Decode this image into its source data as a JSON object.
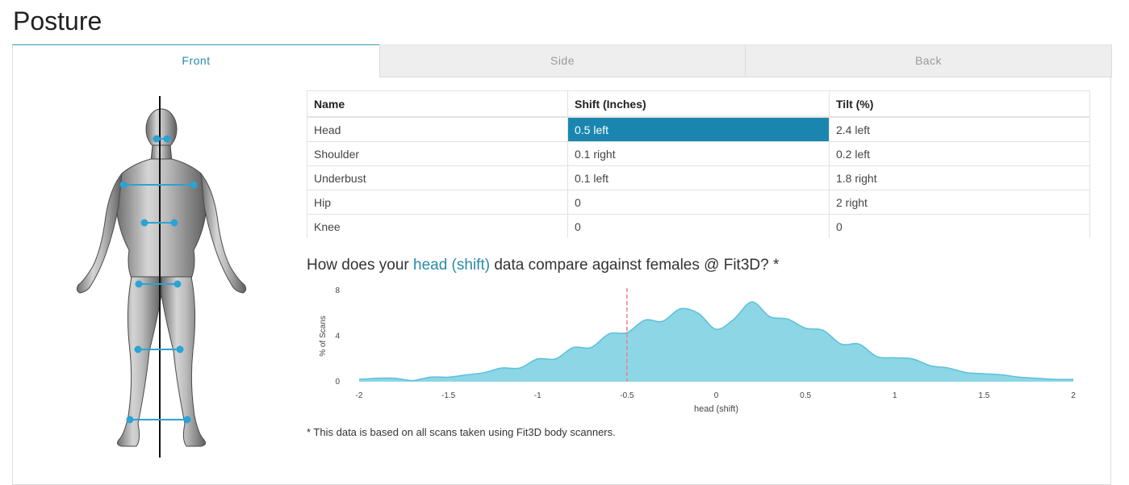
{
  "page": {
    "title": "Posture"
  },
  "tabs": [
    {
      "label": "Front",
      "active": true
    },
    {
      "label": "Side",
      "active": false
    },
    {
      "label": "Back",
      "active": false
    }
  ],
  "table": {
    "headers": [
      "Name",
      "Shift (Inches)",
      "Tilt (%)"
    ],
    "rows": [
      {
        "name": "Head",
        "shift": "0.5 left",
        "tilt": "2.4 left"
      },
      {
        "name": "Shoulder",
        "shift": "0.1 right",
        "tilt": "0.2 left"
      },
      {
        "name": "Underbust",
        "shift": "0.1 left",
        "tilt": "1.8 right"
      },
      {
        "name": "Hip",
        "shift": "0",
        "tilt": "2 right"
      },
      {
        "name": "Knee",
        "shift": "0",
        "tilt": "0"
      }
    ],
    "highlight_color": "#1a86b0"
  },
  "question": {
    "prefix": "How does your ",
    "metric": "head (shift)",
    "suffix": " data compare against females @ Fit3D? *"
  },
  "footnote": "* This data is based on all scans taken using Fit3D body scanners.",
  "colors": {
    "accent": "#2a8aa8",
    "area_fill": "#8dd6e6",
    "area_line": "#5bc0d9",
    "marker": "#f08080",
    "posture_dot": "#2ba3d4"
  },
  "chart_data": {
    "type": "area",
    "xlabel": "head (shift)",
    "ylabel": "% of Scans",
    "xlim": [
      -2,
      2
    ],
    "ylim": [
      0,
      8
    ],
    "xticks": [
      "-2",
      "-1.5",
      "-1",
      "-0.5",
      "0",
      "0.5",
      "1",
      "1.5",
      "2"
    ],
    "yticks": [
      "0",
      "4",
      "8"
    ],
    "marker_x": -0.5,
    "grid": false,
    "series": [
      {
        "x": [
          -2,
          -1.9,
          -1.8,
          -1.7,
          -1.6,
          -1.5,
          -1.4,
          -1.3,
          -1.2,
          -1.1,
          -1.0,
          -0.9,
          -0.8,
          -0.7,
          -0.6,
          -0.5,
          -0.4,
          -0.3,
          -0.2,
          -0.1,
          0,
          0.1,
          0.2,
          0.3,
          0.4,
          0.5,
          0.6,
          0.7,
          0.8,
          0.9,
          1.0,
          1.1,
          1.2,
          1.3,
          1.4,
          1.5,
          1.6,
          1.7,
          1.8,
          1.9,
          2.0
        ],
        "values": [
          0.2,
          0.3,
          0.3,
          0.1,
          0.4,
          0.4,
          0.6,
          0.8,
          1.2,
          1.2,
          2.0,
          2.0,
          3.0,
          3.0,
          4.2,
          4.3,
          5.4,
          5.3,
          6.4,
          6.0,
          4.6,
          5.5,
          7.0,
          5.7,
          5.5,
          4.7,
          4.5,
          3.3,
          3.3,
          2.2,
          2.1,
          2.0,
          1.4,
          1.2,
          0.8,
          0.7,
          0.6,
          0.4,
          0.3,
          0.2,
          0.2
        ]
      }
    ]
  }
}
